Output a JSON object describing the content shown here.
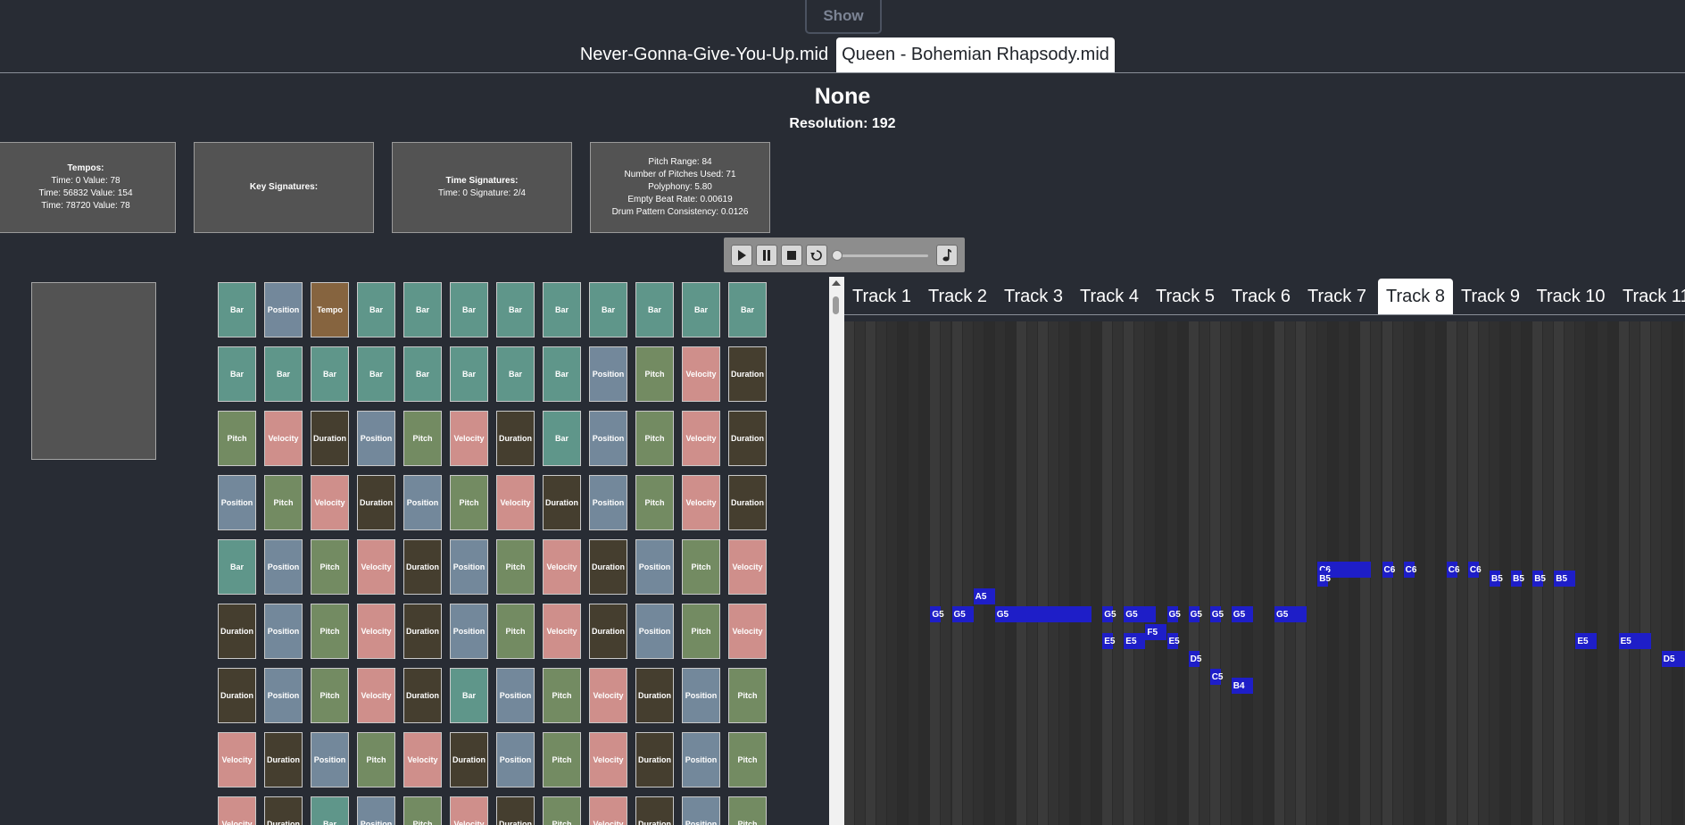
{
  "header": {
    "show_button": "Show",
    "file_tabs": [
      {
        "label": "Never-Gonna-Give-You-Up.mid",
        "active": false
      },
      {
        "label": "Queen - Bohemian Rhapsody.mid",
        "active": true
      }
    ],
    "title": "None",
    "resolution": "Resolution: 192"
  },
  "info": {
    "tempos": {
      "label": "Tempos:",
      "lines": [
        "Time: 0 Value: 78",
        "Time: 56832 Value: 154",
        "Time: 78720 Value: 78"
      ]
    },
    "key_signatures": {
      "label": "Key Signatures:"
    },
    "time_signatures": {
      "label": "Time Signatures:",
      "lines": [
        "Time: 0 Signature: 2/4"
      ]
    },
    "stats": {
      "lines": [
        "Pitch Range: 84",
        "Number of Pitches Used: 71",
        "Polyphony: 5.80",
        "Empty Beat Rate: 0.00619",
        "Drum Pattern Consistency: 0.0126"
      ]
    }
  },
  "player": {
    "buttons": [
      "play-icon",
      "pause-icon",
      "stop-icon",
      "loop-icon",
      "note-icon"
    ],
    "position": 0
  },
  "token_colors": {
    "Bar": "#5f968a",
    "Position": "#73889b",
    "Tempo": "#86643f",
    "Pitch": "#738b62",
    "Velocity": "#cf8f8b",
    "Duration": "#453e2f"
  },
  "tokens": [
    [
      "Bar",
      "Position",
      "Tempo",
      "Bar",
      "Bar",
      "Bar",
      "Bar",
      "Bar",
      "Bar",
      "Bar",
      "Bar",
      "Bar"
    ],
    [
      "Bar",
      "Bar",
      "Bar",
      "Bar",
      "Bar",
      "Bar",
      "Bar",
      "Bar",
      "Position",
      "Pitch",
      "Velocity",
      "Duration"
    ],
    [
      "Pitch",
      "Velocity",
      "Duration",
      "Position",
      "Pitch",
      "Velocity",
      "Duration",
      "Bar",
      "Position",
      "Pitch",
      "Velocity",
      "Duration"
    ],
    [
      "Position",
      "Pitch",
      "Velocity",
      "Duration",
      "Position",
      "Pitch",
      "Velocity",
      "Duration",
      "Position",
      "Pitch",
      "Velocity",
      "Duration"
    ],
    [
      "Bar",
      "Position",
      "Pitch",
      "Velocity",
      "Duration",
      "Position",
      "Pitch",
      "Velocity",
      "Duration",
      "Position",
      "Pitch",
      "Velocity"
    ],
    [
      "Duration",
      "Position",
      "Pitch",
      "Velocity",
      "Duration",
      "Position",
      "Pitch",
      "Velocity",
      "Duration",
      "Position",
      "Pitch",
      "Velocity"
    ],
    [
      "Duration",
      "Position",
      "Pitch",
      "Velocity",
      "Duration",
      "Bar",
      "Position",
      "Pitch",
      "Velocity",
      "Duration",
      "Position",
      "Pitch"
    ],
    [
      "Velocity",
      "Duration",
      "Position",
      "Pitch",
      "Velocity",
      "Duration",
      "Position",
      "Pitch",
      "Velocity",
      "Duration",
      "Position",
      "Pitch"
    ],
    [
      "Velocity",
      "Duration",
      "Bar",
      "Position",
      "Pitch",
      "Velocity",
      "Duration",
      "Pitch",
      "Velocity",
      "Duration",
      "Position",
      "Pitch"
    ]
  ],
  "tracks": [
    {
      "label": "Track 1",
      "active": false
    },
    {
      "label": "Track 2",
      "active": false
    },
    {
      "label": "Track 3",
      "active": false
    },
    {
      "label": "Track 4",
      "active": false
    },
    {
      "label": "Track 5",
      "active": false
    },
    {
      "label": "Track 6",
      "active": false
    },
    {
      "label": "Track 7",
      "active": false
    },
    {
      "label": "Track 8",
      "active": true
    },
    {
      "label": "Track 9",
      "active": false
    },
    {
      "label": "Track 10",
      "active": false
    },
    {
      "label": "Track 11",
      "active": false
    }
  ],
  "piano_roll": {
    "note_color": "#1e1ec8",
    "notes": [
      {
        "pitch": "A5",
        "start": 12,
        "length": 2
      },
      {
        "pitch": "G5",
        "start": 8,
        "length": 1
      },
      {
        "pitch": "G5",
        "start": 10,
        "length": 2
      },
      {
        "pitch": "G5",
        "start": 14,
        "length": 9
      },
      {
        "pitch": "G5",
        "start": 24,
        "length": 1
      },
      {
        "pitch": "G5",
        "start": 26,
        "length": 3
      },
      {
        "pitch": "G5",
        "start": 30,
        "length": 1
      },
      {
        "pitch": "G5",
        "start": 32,
        "length": 1
      },
      {
        "pitch": "G5",
        "start": 34,
        "length": 1
      },
      {
        "pitch": "G5",
        "start": 36,
        "length": 2
      },
      {
        "pitch": "G5",
        "start": 40,
        "length": 3
      },
      {
        "pitch": "F5",
        "start": 28,
        "length": 2
      },
      {
        "pitch": "E5",
        "start": 24,
        "length": 1
      },
      {
        "pitch": "E5",
        "start": 26,
        "length": 2
      },
      {
        "pitch": "E5",
        "start": 30,
        "length": 1
      },
      {
        "pitch": "E5",
        "start": 68,
        "length": 2
      },
      {
        "pitch": "E5",
        "start": 72,
        "length": 3
      },
      {
        "pitch": "D5",
        "start": 32,
        "length": 1
      },
      {
        "pitch": "D5",
        "start": 76,
        "length": 3
      },
      {
        "pitch": "C5",
        "start": 34,
        "length": 1
      },
      {
        "pitch": "B4",
        "start": 36,
        "length": 2
      },
      {
        "pitch": "C6",
        "start": 44,
        "length": 5
      },
      {
        "pitch": "C6",
        "start": 50,
        "length": 1
      },
      {
        "pitch": "C6",
        "start": 52,
        "length": 1
      },
      {
        "pitch": "C6",
        "start": 56,
        "length": 1
      },
      {
        "pitch": "C6",
        "start": 58,
        "length": 1
      },
      {
        "pitch": "B5",
        "start": 44,
        "length": 1
      },
      {
        "pitch": "B5",
        "start": 60,
        "length": 1
      },
      {
        "pitch": "B5",
        "start": 62,
        "length": 1
      },
      {
        "pitch": "B5",
        "start": 64,
        "length": 1
      },
      {
        "pitch": "B5",
        "start": 66,
        "length": 2
      }
    ]
  }
}
